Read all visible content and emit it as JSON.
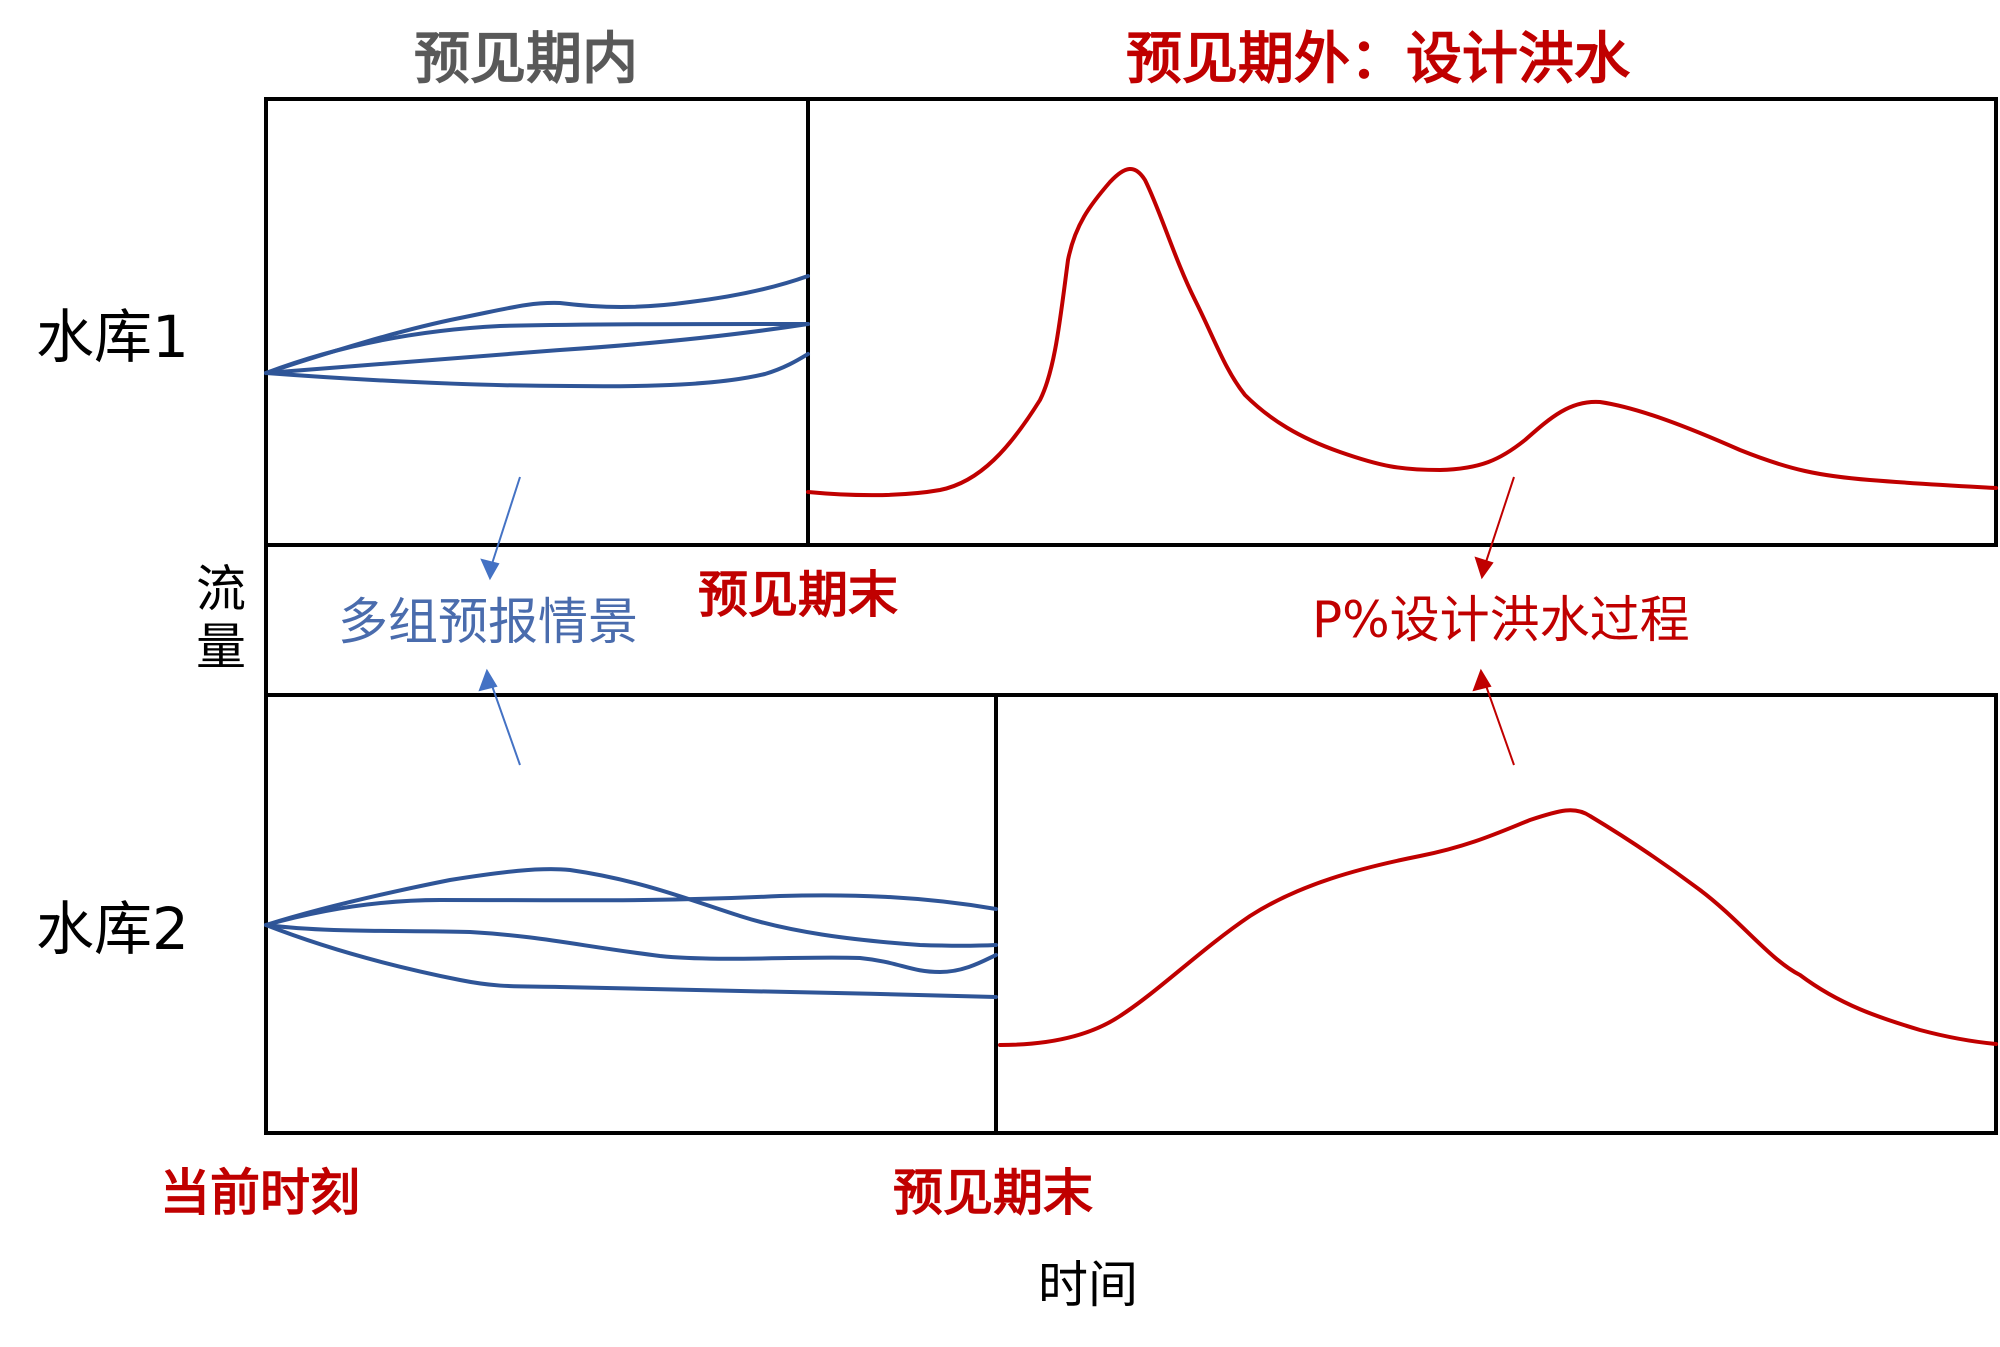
{
  "headers": {
    "within_horizon": "预见期内",
    "beyond_horizon": "预见期外：设计洪水"
  },
  "row_labels": {
    "reservoir1": "水库1",
    "reservoir2": "水库2",
    "flow": "流量"
  },
  "annotations": {
    "forecast_scenarios": "多组预报情景",
    "design_flood_process": "P%设计洪水过程",
    "horizon_end_upper": "预见期末",
    "horizon_end_lower": "预见期末",
    "current_time": "当前时刻"
  },
  "axis": {
    "x_label": "时间"
  },
  "colors": {
    "forecast": "#2f5597",
    "design_flood": "#c00000",
    "arrow_blue": "#4472c4",
    "arrow_red": "#c00000",
    "frame": "#000000"
  }
}
